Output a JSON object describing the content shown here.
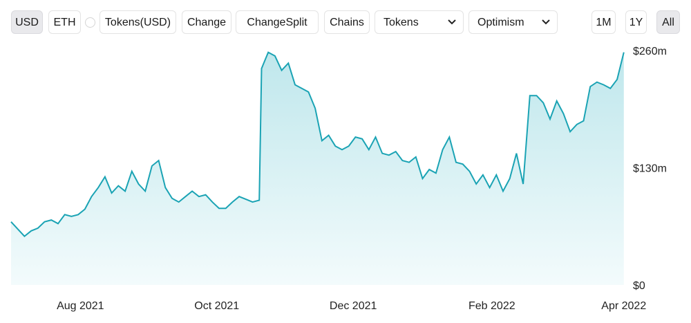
{
  "toolbar": {
    "usd": "USD",
    "eth": "ETH",
    "tokens_usd": "Tokens(USD)",
    "change": "Change",
    "change_split": "ChangeSplit",
    "chains": "Chains",
    "tokens_select": "Tokens",
    "network_select": "Optimism",
    "range_1m": "1M",
    "range_1y": "1Y",
    "range_all": "All"
  },
  "colors": {
    "line": "#1aa3b4",
    "fill_top": "#bfe7ec",
    "fill_bottom": "#f3fbfc"
  },
  "chart_data": {
    "type": "area",
    "title": "",
    "xlabel": "",
    "ylabel": "",
    "ylim": [
      0,
      270
    ],
    "y_ticks": [
      0,
      130,
      260
    ],
    "y_tick_labels": [
      "$0",
      "$130m",
      "$260m"
    ],
    "y_axis_position": "right",
    "x_range": [
      "2021-07-01",
      "2022-04-02"
    ],
    "x_ticks": [
      "2021-08-01",
      "2021-10-01",
      "2021-12-01",
      "2022-02-01",
      "2022-04-01"
    ],
    "x_tick_labels": [
      "Aug 2021",
      "Oct 2021",
      "Dec 2021",
      "Feb 2022",
      "Apr 2022"
    ],
    "grid": false,
    "series": [
      {
        "x": [
          "2021-07-01",
          "2021-07-04",
          "2021-07-07",
          "2021-07-10",
          "2021-07-13",
          "2021-07-16",
          "2021-07-19",
          "2021-07-22",
          "2021-07-25",
          "2021-07-28",
          "2021-07-31",
          "2021-08-03",
          "2021-08-06",
          "2021-08-09",
          "2021-08-12",
          "2021-08-15",
          "2021-08-18",
          "2021-08-21",
          "2021-08-24",
          "2021-08-27",
          "2021-08-30",
          "2021-09-02",
          "2021-09-05",
          "2021-09-08",
          "2021-09-11",
          "2021-09-14",
          "2021-09-17",
          "2021-09-20",
          "2021-09-23",
          "2021-09-26",
          "2021-09-29",
          "2021-10-02",
          "2021-10-05",
          "2021-10-08",
          "2021-10-11",
          "2021-10-14",
          "2021-10-17",
          "2021-10-20",
          "2021-10-21",
          "2021-10-24",
          "2021-10-27",
          "2021-10-30",
          "2021-11-02",
          "2021-11-05",
          "2021-11-08",
          "2021-11-11",
          "2021-11-14",
          "2021-11-17",
          "2021-11-20",
          "2021-11-23",
          "2021-11-26",
          "2021-11-29",
          "2021-12-02",
          "2021-12-05",
          "2021-12-08",
          "2021-12-11",
          "2021-12-14",
          "2021-12-17",
          "2021-12-20",
          "2021-12-23",
          "2021-12-26",
          "2021-12-29",
          "2022-01-01",
          "2022-01-04",
          "2022-01-07",
          "2022-01-10",
          "2022-01-13",
          "2022-01-16",
          "2022-01-19",
          "2022-01-22",
          "2022-01-25",
          "2022-01-28",
          "2022-01-31",
          "2022-02-03",
          "2022-02-06",
          "2022-02-09",
          "2022-02-12",
          "2022-02-15",
          "2022-02-18",
          "2022-02-21",
          "2022-02-24",
          "2022-02-27",
          "2022-03-02",
          "2022-03-05",
          "2022-03-08",
          "2022-03-11",
          "2022-03-14",
          "2022-03-17",
          "2022-03-20",
          "2022-03-23",
          "2022-03-26",
          "2022-03-29",
          "2022-04-01"
        ],
        "values": [
          70,
          62,
          54,
          60,
          63,
          70,
          72,
          68,
          78,
          76,
          78,
          84,
          98,
          108,
          120,
          102,
          110,
          104,
          126,
          112,
          104,
          132,
          138,
          108,
          96,
          92,
          98,
          104,
          98,
          100,
          92,
          85,
          85,
          92,
          98,
          95,
          92,
          94,
          240,
          258,
          254,
          238,
          246,
          222,
          218,
          214,
          196,
          160,
          166,
          154,
          150,
          154,
          164,
          162,
          150,
          164,
          146,
          144,
          148,
          138,
          136,
          142,
          118,
          128,
          124,
          150,
          164,
          136,
          134,
          126,
          112,
          122,
          108,
          122,
          104,
          118,
          146,
          112,
          210,
          210,
          202,
          184,
          204,
          190,
          170,
          178,
          182,
          220,
          225,
          222,
          218,
          228,
          258
        ]
      }
    ]
  }
}
